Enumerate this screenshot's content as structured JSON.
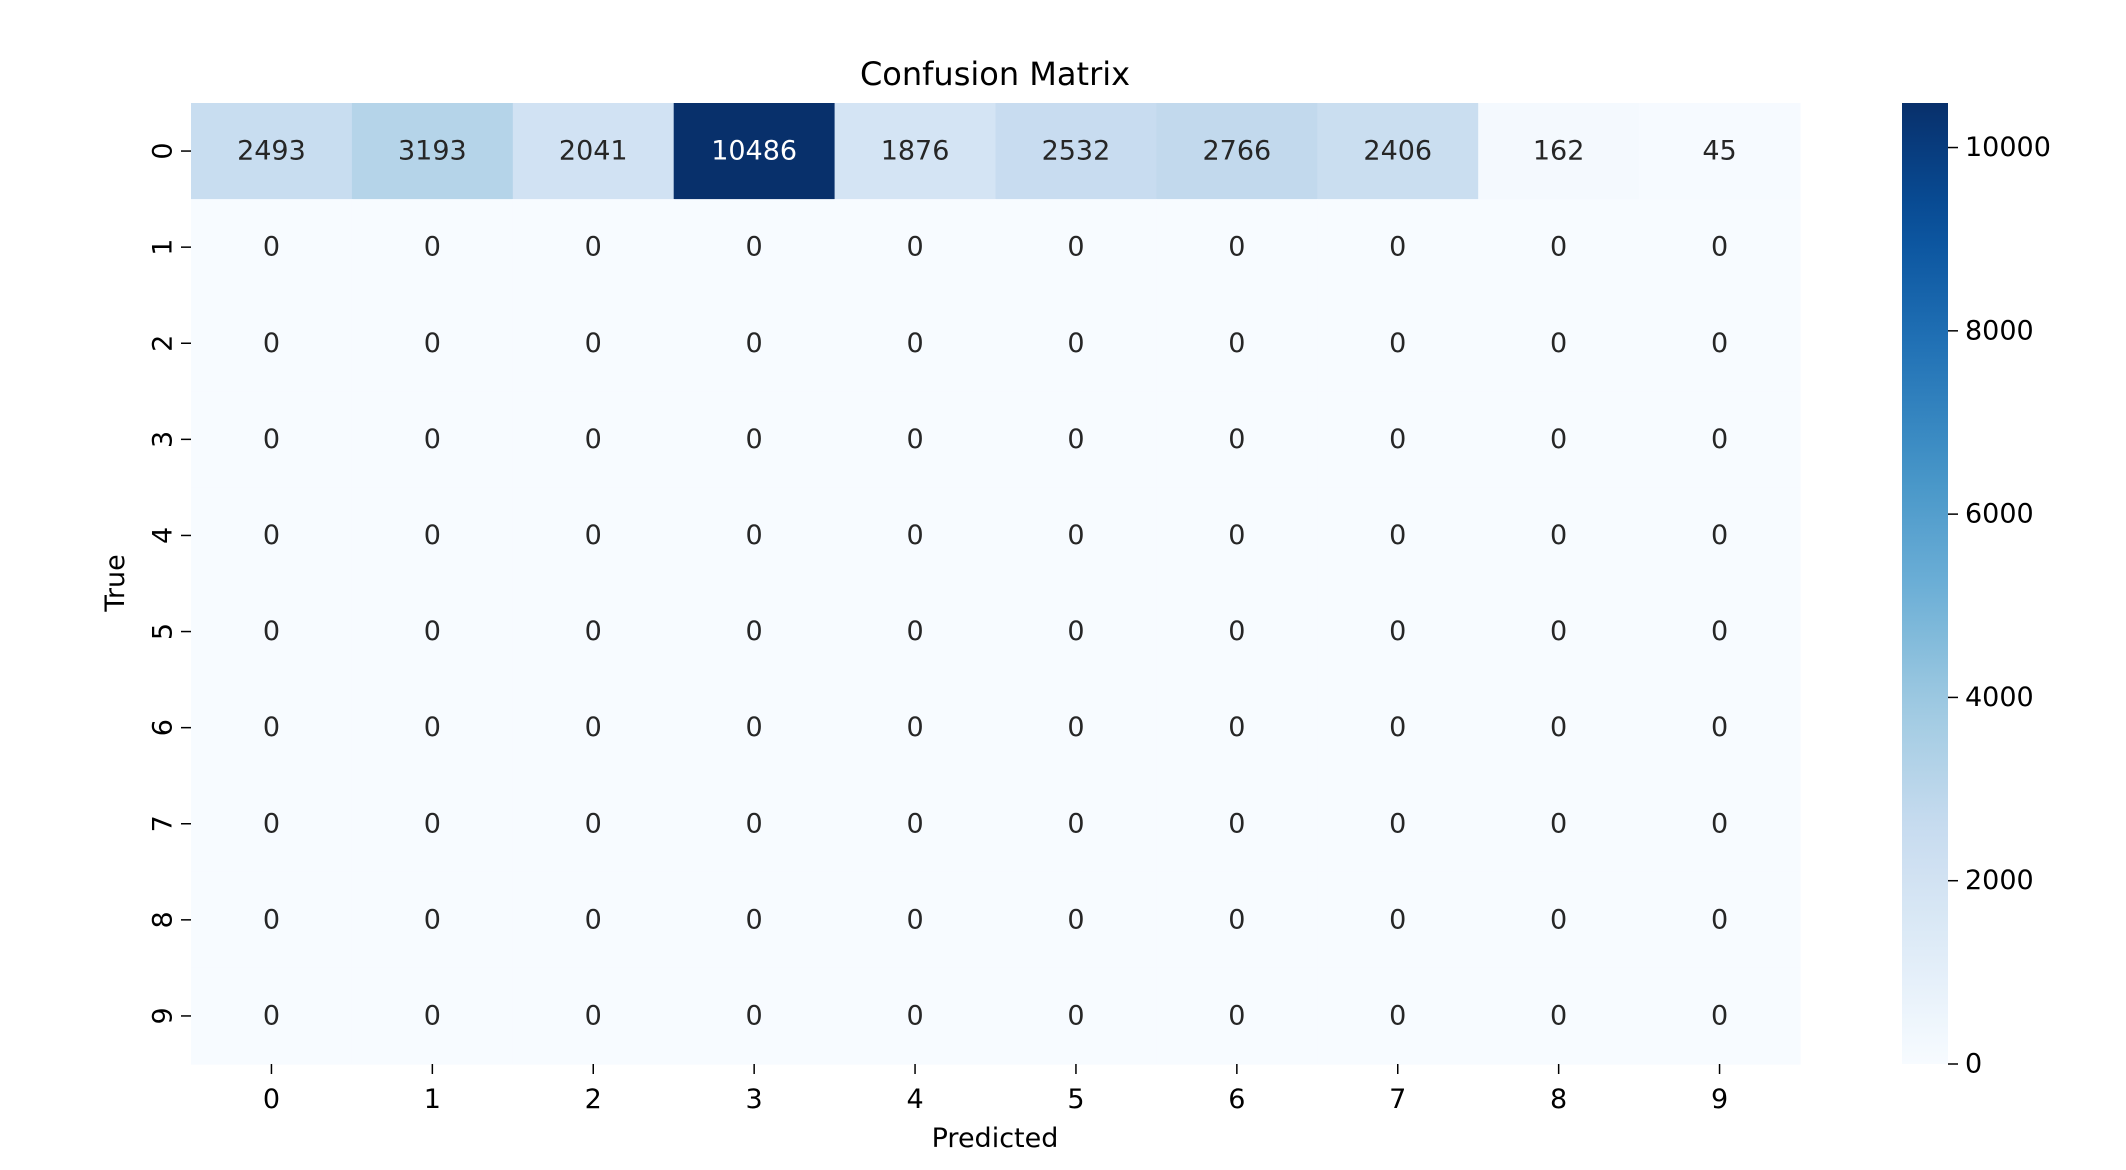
{
  "chart_data": {
    "type": "heatmap",
    "title": "Confusion Matrix",
    "xlabel": "Predicted",
    "ylabel": "True",
    "x_categories": [
      "0",
      "1",
      "2",
      "3",
      "4",
      "5",
      "6",
      "7",
      "8",
      "9"
    ],
    "y_categories": [
      "0",
      "1",
      "2",
      "3",
      "4",
      "5",
      "6",
      "7",
      "8",
      "9"
    ],
    "values": [
      [
        2493,
        3193,
        2041,
        10486,
        1876,
        2532,
        2766,
        2406,
        162,
        45
      ],
      [
        0,
        0,
        0,
        0,
        0,
        0,
        0,
        0,
        0,
        0
      ],
      [
        0,
        0,
        0,
        0,
        0,
        0,
        0,
        0,
        0,
        0
      ],
      [
        0,
        0,
        0,
        0,
        0,
        0,
        0,
        0,
        0,
        0
      ],
      [
        0,
        0,
        0,
        0,
        0,
        0,
        0,
        0,
        0,
        0
      ],
      [
        0,
        0,
        0,
        0,
        0,
        0,
        0,
        0,
        0,
        0
      ],
      [
        0,
        0,
        0,
        0,
        0,
        0,
        0,
        0,
        0,
        0
      ],
      [
        0,
        0,
        0,
        0,
        0,
        0,
        0,
        0,
        0,
        0
      ],
      [
        0,
        0,
        0,
        0,
        0,
        0,
        0,
        0,
        0,
        0
      ],
      [
        0,
        0,
        0,
        0,
        0,
        0,
        0,
        0,
        0,
        0
      ]
    ],
    "colorbar": {
      "colormap": "Blues",
      "range": [
        0,
        10486
      ],
      "ticks": [
        0,
        2000,
        4000,
        6000,
        8000,
        10000
      ],
      "tick_labels": [
        "0",
        "2000",
        "4000",
        "6000",
        "8000",
        "10000"
      ]
    },
    "grid": false
  }
}
